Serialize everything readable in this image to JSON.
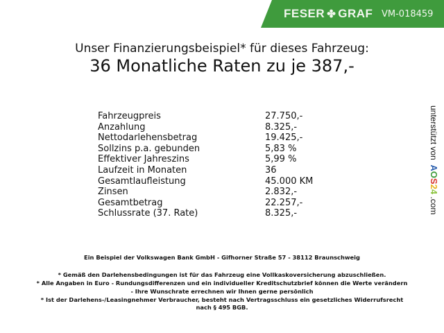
{
  "header": {
    "brand_left": "FESER",
    "brand_right": "GRAF",
    "brand_icon": "clover-icon",
    "vehicle_id": "VM-018459",
    "brand_color": "#3f9b3d"
  },
  "title": {
    "line1": "Unser Finanzierungsbeispiel* für dieses Fahrzeug:",
    "line2": "36 Monatliche Raten zu je 387,-"
  },
  "table": [
    {
      "label": "Fahrzeugpreis",
      "value": "27.750,-"
    },
    {
      "label": "Anzahlung",
      "value": "8.325,-"
    },
    {
      "label": "Nettodarlehensbetrag",
      "value": "19.425,-"
    },
    {
      "label": "Sollzins p.a. gebunden",
      "value": "5,83 %"
    },
    {
      "label": "Effektiver Jahreszins",
      "value": "5,99 %"
    },
    {
      "label": "Laufzeit in Monaten",
      "value": "36"
    },
    {
      "label": "Gesamtlaufleistung",
      "value": "45.000 KM"
    },
    {
      "label": "Zinsen",
      "value": "2.832,-"
    },
    {
      "label": "Gesamtbetrag",
      "value": "22.257,-"
    },
    {
      "label": "Schlussrate (37. Rate)",
      "value": "8.325,-"
    }
  ],
  "side": {
    "text": "unterstützt von",
    "logo": [
      "A",
      "O",
      "S",
      "2",
      "4"
    ],
    "suffix": ".com"
  },
  "footer": {
    "bank": "Ein Beispiel der Volkswagen Bank GmbH - Gifhorner Straße 57 - 38112 Braunschweig",
    "note1": "* Gemäß den Darlehensbedingungen ist für das Fahrzeug eine Vollkaskoversicherung abzuschließen.",
    "note2a": "* Alle Angaben in Euro - Rundungsdifferenzen und ein individueller Kreditschutzbrief können die Werte verändern",
    "note2b": "- Ihre Wunschrate errechnen wir Ihnen gerne persönlich",
    "note3a": "* Ist der Darlehens-/Leasingnehmer Verbraucher, besteht nach Vertragsschluss ein gesetzliches Widerrufsrecht",
    "note3b": "nach § 495 BGB."
  }
}
